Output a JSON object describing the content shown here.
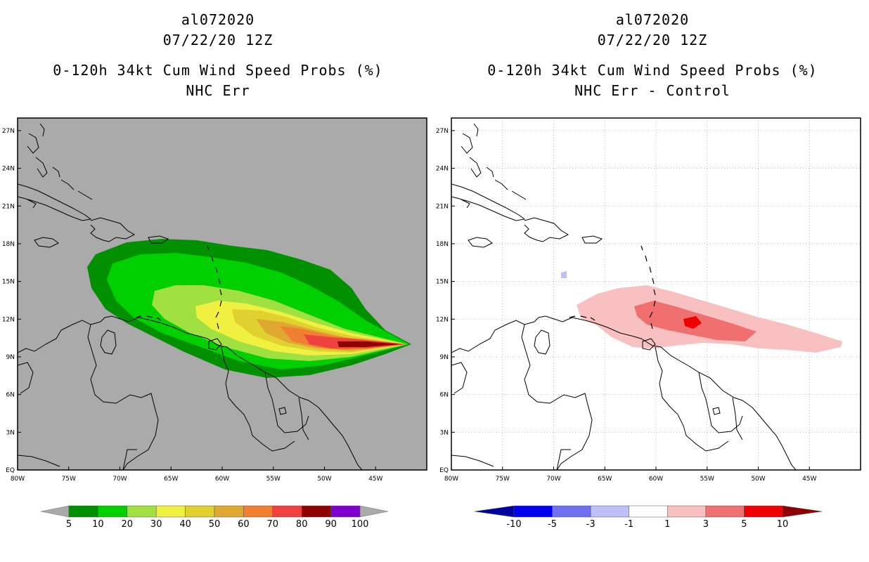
{
  "panels": [
    {
      "storm_id": "al072020",
      "datetime": "07/22/20 12Z",
      "product": "0-120h 34kt Cum Wind Speed Probs (%)",
      "subtitle": "NHC Err"
    },
    {
      "storm_id": "al072020",
      "datetime": "07/22/20 12Z",
      "product": "0-120h 34kt Cum Wind Speed Probs (%)",
      "subtitle": "NHC Err - Control"
    }
  ],
  "lat_labels": [
    "27N",
    "24N",
    "21N",
    "18N",
    "15N",
    "12N",
    "9N",
    "6N",
    "3N",
    "EQ"
  ],
  "lon_labels": [
    "80W",
    "75W",
    "70W",
    "65W",
    "60W",
    "55W",
    "50W",
    "45W"
  ],
  "chart_data": [
    {
      "type": "heatmap",
      "title": "0-120h 34kt Cum Wind Speed Probs (%) - NHC Err",
      "lat_range": [
        0,
        28
      ],
      "lon_range": [
        -80,
        -40
      ],
      "levels": [
        5,
        10,
        20,
        30,
        40,
        50,
        60,
        70,
        80,
        90,
        100
      ],
      "colorbar_colors": [
        "#009000",
        "#00d000",
        "#a0e040",
        "#f0f040",
        "#e0d030",
        "#e0a830",
        "#f08030",
        "#f04040",
        "#900000",
        "#8000d0"
      ],
      "max_prob_center": {
        "lon": -47.5,
        "lat": 10.2
      },
      "colorbar_labels": [
        "5",
        "10",
        "20",
        "30",
        "40",
        "50",
        "60",
        "70",
        "80",
        "90",
        "100"
      ]
    },
    {
      "type": "heatmap",
      "title": "0-120h 34kt Cum Wind Speed Probs (%) - NHC Err - Control",
      "lat_range": [
        0,
        28
      ],
      "lon_range": [
        -80,
        -40
      ],
      "levels": [
        -10,
        -5,
        -3,
        -1,
        1,
        3,
        5,
        10
      ],
      "colorbar_colors": [
        "#0000a0",
        "#0000f0",
        "#7070f0",
        "#c0c0f8",
        "#ffffff",
        "#f8c0c0",
        "#f07070",
        "#f00000",
        "#900000"
      ],
      "max_diff_center": {
        "lon": -57,
        "lat": 11.6
      },
      "colorbar_labels": [
        "-10",
        "-5",
        "-3",
        "-1",
        "1",
        "3",
        "5",
        "10"
      ]
    }
  ]
}
